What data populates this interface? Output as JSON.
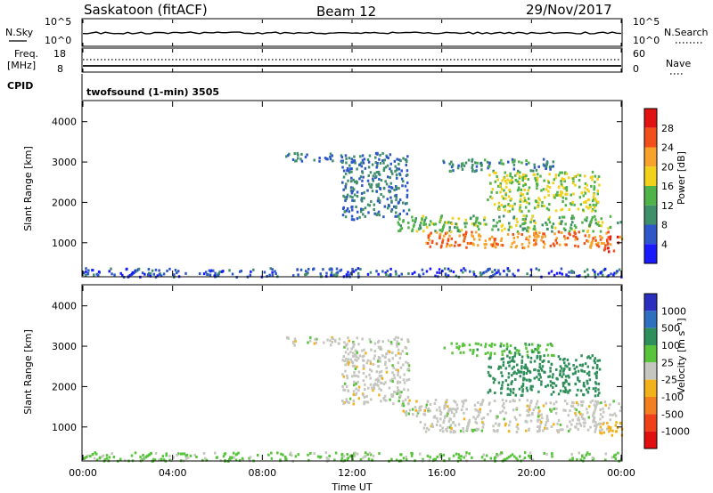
{
  "header": {
    "station": "Saskatoon (fitACF)",
    "beam": "Beam 12",
    "date": "29/Nov/2017"
  },
  "noise_panel": {
    "left_label": "N.Sky",
    "right_label": "N.Search",
    "left_ticks": [
      "10^5",
      "10^0"
    ],
    "right_ticks": [
      "10^5",
      "10^0"
    ]
  },
  "freq_panel": {
    "left_label_1": "Freq.",
    "left_label_2": "[MHz]",
    "right_label": "Nave",
    "left_ticks": [
      "18",
      "8"
    ],
    "right_ticks": [
      "60",
      "0"
    ]
  },
  "cpid_panel": {
    "label": "CPID",
    "text": "twofsound (1-min) 3505"
  },
  "axes": {
    "xlabel": "Time UT",
    "x_ticks": [
      "00:00",
      "04:00",
      "08:00",
      "12:00",
      "16:00",
      "20:00",
      "00:00"
    ],
    "ylabel": "Slant Range [km]",
    "y_ticks": [
      "1000",
      "2000",
      "3000",
      "4000"
    ]
  },
  "power_scale": {
    "label": "Power [dB]",
    "ticks": [
      "4",
      "8",
      "12",
      "16",
      "20",
      "24",
      "28"
    ],
    "colors": [
      "#1a1aff",
      "#2e57c8",
      "#3f8f6a",
      "#4fb34a",
      "#f2d11a",
      "#f7a22a",
      "#f1501a",
      "#e01212"
    ]
  },
  "velocity_scale": {
    "label": "Velocity [m s⁻¹]",
    "ticks": [
      "1000",
      "500",
      "100",
      "25",
      "-25",
      "-100",
      "-500",
      "-1000"
    ],
    "colors": [
      "#2a2fc0",
      "#2e6fc0",
      "#2f8f5a",
      "#58c43c",
      "#c6c6c0",
      "#f2b21c",
      "#f28020",
      "#f04018",
      "#e01010"
    ]
  },
  "chart_data": {
    "type": "heatmap",
    "x_range": [
      "00:00",
      "00:00"
    ],
    "y_range_km": [
      180,
      4500
    ],
    "echo_regions": [
      {
        "from_ut": "00:00",
        "to_ut": "00:00",
        "range_km": [
          180,
          400
        ],
        "power_db": 6,
        "velocity": 40
      },
      {
        "from_ut": "09:00",
        "to_ut": "11:30",
        "range_km": [
          3050,
          3250
        ],
        "power_db": 8,
        "velocity": 0
      },
      {
        "from_ut": "11:30",
        "to_ut": "14:30",
        "range_km": [
          1600,
          3250
        ],
        "power_db": 8,
        "velocity": 0
      },
      {
        "from_ut": "14:00",
        "to_ut": "00:00",
        "range_km": [
          1300,
          1700
        ],
        "power_db": 14,
        "velocity": 0
      },
      {
        "from_ut": "15:00",
        "to_ut": "23:30",
        "range_km": [
          900,
          1300
        ],
        "power_db": 24,
        "velocity": 0
      },
      {
        "from_ut": "16:00",
        "to_ut": "21:00",
        "range_km": [
          2800,
          3100
        ],
        "power_db": 10,
        "velocity": 80
      },
      {
        "from_ut": "18:00",
        "to_ut": "23:00",
        "range_km": [
          1800,
          2800
        ],
        "power_db": 16,
        "velocity": 150
      },
      {
        "from_ut": "23:00",
        "to_ut": "00:00",
        "range_km": [
          800,
          1200
        ],
        "power_db": 26,
        "velocity": -60
      }
    ]
  }
}
